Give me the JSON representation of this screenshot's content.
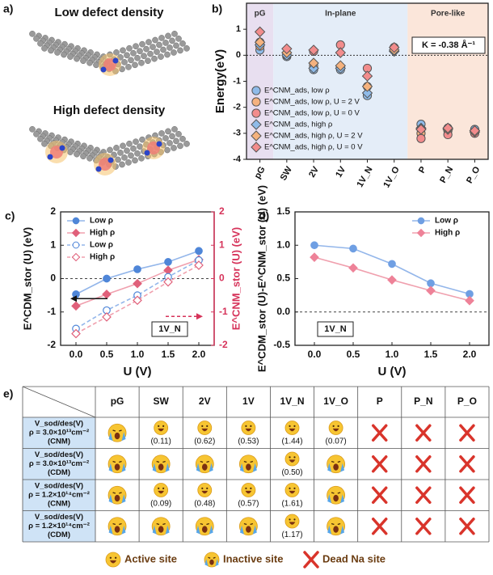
{
  "panel_a": {
    "label": "a)",
    "top_title": "Low defect density",
    "bottom_title": "High defect density"
  },
  "chart_data": [
    {
      "type": "scatter",
      "panel_label": "b)",
      "y_label": "Energy(eV)",
      "categories": [
        "pG",
        "SW",
        "2V",
        "1V",
        "1V_N",
        "1V_O",
        "P",
        "P_N",
        "P_O"
      ],
      "regions": [
        {
          "label": "pG",
          "from": "pG",
          "to": "pG",
          "color": "#e8dff0"
        },
        {
          "label": "In-plane",
          "from": "SW",
          "to": "1V_O",
          "color": "#e4edf8"
        },
        {
          "label": "Pore-like",
          "from": "P",
          "to": "P_O",
          "color": "#fbe6da"
        }
      ],
      "annotation": "K = -0.38 Å⁻¹",
      "reference_line": 0,
      "ylim": [
        -4,
        2
      ],
      "yticks": [
        -4,
        -3,
        -2,
        -1,
        0,
        1
      ],
      "legend": "lower left",
      "series": [
        {
          "name": "E^CNM_ads, low ρ",
          "marker": "circle",
          "color": "#8fbbe9",
          "values": [
            0.2,
            -0.05,
            -0.55,
            -0.55,
            -1.55,
            0.2,
            -2.65,
            -2.8,
            -2.85
          ]
        },
        {
          "name": "E^CNM_ads, low ρ, U = 2 V",
          "marker": "circle",
          "color": "#f5b27e",
          "values": [
            0.35,
            0.0,
            -0.4,
            -0.45,
            -1.2,
            0.3,
            -3.0,
            -2.9,
            -2.95
          ]
        },
        {
          "name": "E^CNM_ads, low ρ, U = 0 V",
          "marker": "circle",
          "color": "#f28c8c",
          "values": [
            0.5,
            0.05,
            0.15,
            0.4,
            -0.5,
            0.3,
            -3.2,
            -3.05,
            -3.0
          ]
        },
        {
          "name": "E^CNM_ads, high ρ",
          "marker": "diamond",
          "color": "#8fbbe9",
          "values": [
            0.4,
            0.0,
            -0.5,
            -0.5,
            -1.45,
            0.15,
            -2.8,
            -2.8,
            -2.9
          ]
        },
        {
          "name": "E^CNM_ads, high ρ, U = 2 V",
          "marker": "diamond",
          "color": "#f5b27e",
          "values": [
            0.5,
            0.1,
            -0.3,
            -0.4,
            -1.2,
            0.2,
            -2.85,
            -2.85,
            -2.95
          ]
        },
        {
          "name": "E^CNM_ads, high ρ, U = 0 V",
          "marker": "diamond",
          "color": "#f28c8c",
          "values": [
            0.9,
            0.25,
            0.2,
            0.1,
            -0.8,
            0.3,
            -2.85,
            -2.8,
            -2.9
          ]
        }
      ]
    },
    {
      "type": "line",
      "panel_label": "c)",
      "x_label": "U (V)",
      "y_label": "E^CDM_stor (U) (eV)",
      "y2_label": "E^CNM_stor (U) (eV)",
      "annotation": "1V_N",
      "reference_line": 0,
      "legend": "upper left",
      "x": [
        0,
        0.5,
        1,
        1.5,
        2
      ],
      "xlim": [
        -0.25,
        2.25
      ],
      "xticks": [
        {
          "value": 0,
          "label": "0.0"
        },
        {
          "value": 0.5,
          "label": "0.5"
        },
        {
          "value": 1,
          "label": "1.0"
        },
        {
          "value": 1.5,
          "label": "1.5"
        },
        {
          "value": 2,
          "label": "2.0"
        }
      ],
      "ylim": [
        -2,
        2
      ],
      "yticks": [
        -2,
        -1,
        0,
        1,
        2
      ],
      "y2lim": [
        -2,
        2
      ],
      "y2ticks": [
        -2,
        -1,
        0,
        1,
        2
      ],
      "y2_color": "#d6335a",
      "series": [
        {
          "name": "Low ρ",
          "marker": "circle",
          "filled": true,
          "color": "#4f86d8",
          "line_color": "#93b6ea",
          "values": [
            -0.47,
            0.0,
            0.28,
            0.5,
            0.83
          ]
        },
        {
          "name": "High ρ",
          "marker": "diamond",
          "filled": true,
          "color": "#e0607a",
          "line_color": "#f0a0ae",
          "values": [
            -0.82,
            -0.47,
            -0.15,
            0.25,
            0.57
          ]
        },
        {
          "name": "Low ρ",
          "marker": "circle",
          "filled": false,
          "dashed": true,
          "axis": "y2",
          "color": "#4f86d8",
          "line_color": "#93b6ea",
          "values": [
            -1.5,
            -0.95,
            -0.5,
            0.05,
            0.55
          ]
        },
        {
          "name": "High ρ",
          "marker": "diamond",
          "filled": false,
          "dashed": true,
          "axis": "y2",
          "color": "#e0607a",
          "line_color": "#f0a0ae",
          "values": [
            -1.65,
            -1.15,
            -0.65,
            -0.1,
            0.4
          ]
        }
      ]
    },
    {
      "type": "line",
      "panel_label": "d)",
      "x_label": "U (V)",
      "y_label": "E^CDM_stor (U)-E^CNM_stor (U) (eV)",
      "annotation": "1V_N",
      "reference_line": 0,
      "legend": "upper right",
      "x": [
        0,
        0.5,
        1,
        1.5,
        2
      ],
      "xlim": [
        -0.25,
        2.25
      ],
      "xticks": [
        {
          "value": 0,
          "label": "0.0"
        },
        {
          "value": 0.5,
          "label": "0.5"
        },
        {
          "value": 1,
          "label": "1.0"
        },
        {
          "value": 1.5,
          "label": "1.5"
        },
        {
          "value": 2,
          "label": "2.0"
        }
      ],
      "ylim": [
        -0.5,
        1.5
      ],
      "yticks": [
        {
          "value": -0.5,
          "label": "-0.5"
        },
        {
          "value": 0,
          "label": "0.0"
        },
        {
          "value": 0.5,
          "label": "0.5"
        },
        {
          "value": 1,
          "label": "1.0"
        },
        {
          "value": 1.5,
          "label": "1.5"
        }
      ],
      "series": [
        {
          "name": "Low ρ",
          "marker": "circle",
          "filled": true,
          "color": "#6f9fe3",
          "line_color": "#93b6ea",
          "values": [
            1.0,
            0.95,
            0.72,
            0.43,
            0.27
          ]
        },
        {
          "name": "High ρ",
          "marker": "diamond",
          "filled": true,
          "color": "#ee8298",
          "line_color": "#f0a0ae",
          "values": [
            0.82,
            0.66,
            0.48,
            0.32,
            0.17
          ]
        }
      ]
    }
  ],
  "table": {
    "label": "e)",
    "columns": [
      "pG",
      "SW",
      "2V",
      "1V",
      "1V_N",
      "1V_O",
      "P",
      "P_N",
      "P_O"
    ],
    "legend": [
      "Active site",
      "Inactive site",
      "Dead Na site"
    ],
    "rows": [
      {
        "header": [
          "V_sod/des(V)",
          "ρ = 3.0×10¹³cm⁻²",
          "(CNM)"
        ],
        "cells": [
          {
            "site": 1
          },
          {
            "site": 0,
            "text": "(0.11)"
          },
          {
            "site": 0,
            "text": "(0.62)"
          },
          {
            "site": 0,
            "text": "(0.53)"
          },
          {
            "site": 0,
            "text": "(1.44)"
          },
          {
            "site": 0,
            "text": "(0.07)"
          },
          {
            "site": 2
          },
          {
            "site": 2
          },
          {
            "site": 2
          }
        ]
      },
      {
        "header": [
          "V_sod/des(V)",
          "ρ = 3.0×10¹³cm⁻²",
          "(CDM)"
        ],
        "cells": [
          {
            "site": 1
          },
          {
            "site": 1
          },
          {
            "site": 1
          },
          {
            "site": 1
          },
          {
            "site": 0,
            "text": "(0.50)"
          },
          {
            "site": 1
          },
          {
            "site": 2
          },
          {
            "site": 2
          },
          {
            "site": 2
          }
        ]
      },
      {
        "header": [
          "V_sod/des(V)",
          "ρ = 1.2×10¹⁴cm⁻²",
          "(CNM)"
        ],
        "cells": [
          {
            "site": 1
          },
          {
            "site": 0,
            "text": "(0.09)"
          },
          {
            "site": 0,
            "text": "(0.48)"
          },
          {
            "site": 0,
            "text": "(0.57)"
          },
          {
            "site": 0,
            "text": "(1.61)"
          },
          {
            "site": 1
          },
          {
            "site": 2
          },
          {
            "site": 2
          },
          {
            "site": 2
          }
        ]
      },
      {
        "header": [
          "V_sod/des(V)",
          "ρ = 1.2×10¹⁴cm⁻²",
          "(CDM)"
        ],
        "cells": [
          {
            "site": 1
          },
          {
            "site": 1
          },
          {
            "site": 1
          },
          {
            "site": 1
          },
          {
            "site": 0,
            "text": "(1.17)"
          },
          {
            "site": 1
          },
          {
            "site": 2
          },
          {
            "site": 2
          },
          {
            "site": 2
          }
        ]
      }
    ]
  }
}
